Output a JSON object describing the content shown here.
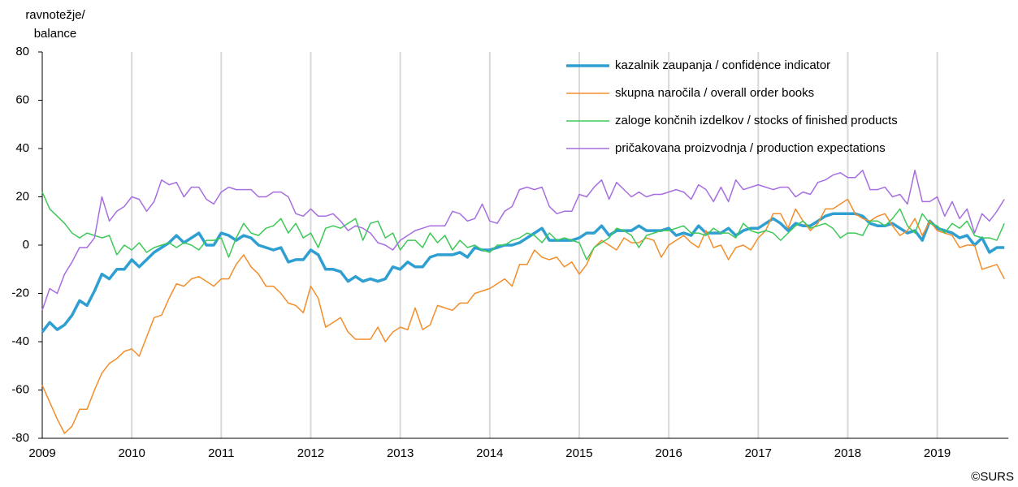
{
  "chart_data": {
    "type": "line",
    "ylabel": [
      "ravnotežje/",
      "balance"
    ],
    "source": "©SURS",
    "categories": [
      "2009",
      null,
      null,
      null,
      null,
      null,
      null,
      null,
      null,
      null,
      null,
      null,
      "2010",
      null,
      null,
      null,
      null,
      null,
      null,
      null,
      null,
      null,
      null,
      null,
      "2011",
      null,
      null,
      null,
      null,
      null,
      null,
      null,
      null,
      null,
      null,
      null,
      "2012",
      null,
      null,
      null,
      null,
      null,
      null,
      null,
      null,
      null,
      null,
      null,
      "2013",
      null,
      null,
      null,
      null,
      null,
      null,
      null,
      null,
      null,
      null,
      null,
      "2014",
      null,
      null,
      null,
      null,
      null,
      null,
      null,
      null,
      null,
      null,
      null,
      "2015",
      null,
      null,
      null,
      null,
      null,
      null,
      null,
      null,
      null,
      null,
      null,
      "2016",
      null,
      null,
      null,
      null,
      null,
      null,
      null,
      null,
      null,
      null,
      null,
      "2017",
      null,
      null,
      null,
      null,
      null,
      null,
      null,
      null,
      null,
      null,
      null,
      "2018",
      null,
      null,
      null,
      null,
      null,
      null,
      null,
      null,
      null,
      null,
      null,
      "2019",
      null,
      null,
      null,
      null,
      null,
      null,
      null,
      null,
      null
    ],
    "ylim": [
      -80,
      80
    ],
    "yticks": [
      -80,
      -60,
      -40,
      -20,
      0,
      20,
      40,
      60,
      80
    ],
    "grid": "x",
    "legend": "top-right",
    "series": [
      {
        "name": "kazalnik zaupanja / confidence indicator",
        "color": "#2f9fd2",
        "width": 3.5,
        "values": [
          -36,
          -32,
          -35,
          -33,
          -29,
          -23,
          -25,
          -19,
          -12,
          -14,
          -10,
          -10,
          -6,
          -9,
          -6,
          -3,
          -1,
          1,
          4,
          1,
          3,
          5,
          0,
          0,
          5,
          4,
          2,
          4,
          3,
          0,
          -1,
          -2,
          -1,
          -7,
          -6,
          -6,
          -2,
          -4,
          -10,
          -10,
          -11,
          -15,
          -13,
          -15,
          -14,
          -15,
          -14,
          -9,
          -10,
          -7,
          -9,
          -9,
          -5,
          -4,
          -4,
          -4,
          -3,
          -5,
          -1,
          -2,
          -2,
          -1,
          0,
          0,
          1,
          3,
          5,
          7,
          2,
          2,
          2,
          2,
          3,
          5,
          5,
          8,
          4,
          6,
          6,
          6,
          8,
          6,
          6,
          6,
          7,
          4,
          5,
          4,
          8,
          5,
          5,
          5,
          7,
          4,
          6,
          7,
          7,
          9,
          11,
          9,
          6,
          9,
          8,
          8,
          10,
          12,
          13,
          13,
          13,
          13,
          12,
          9,
          8,
          8,
          9,
          7,
          5,
          6,
          2,
          10,
          7,
          6,
          5,
          3,
          4,
          0,
          3,
          -3,
          -1,
          -1
        ]
      },
      {
        "name": "skupna naročila / overall order books",
        "color": "#f28e2b",
        "width": 1.5,
        "values": [
          -58,
          -65,
          -72,
          -78,
          -75,
          -68,
          -68,
          -60,
          -53,
          -49,
          -47,
          -44,
          -43,
          -46,
          -38,
          -30,
          -29,
          -22,
          -16,
          -17,
          -14,
          -13,
          -15,
          -17,
          -14,
          -14,
          -8,
          -4,
          -9,
          -12,
          -17,
          -17,
          -20,
          -24,
          -25,
          -28,
          -17,
          -22,
          -34,
          -32,
          -30,
          -36,
          -39,
          -39,
          -39,
          -34,
          -40,
          -36,
          -34,
          -35,
          -26,
          -35,
          -33,
          -25,
          -26,
          -27,
          -24,
          -24,
          -20,
          -19,
          -18,
          -16,
          -14,
          -17,
          -8,
          -8,
          -2,
          -5,
          -6,
          -5,
          -9,
          -7,
          -12,
          -8,
          -1,
          2,
          0,
          -2,
          3,
          1,
          1,
          3,
          2,
          -5,
          0,
          2,
          4,
          1,
          -1,
          6,
          -1,
          0,
          -6,
          -1,
          0,
          -2,
          3,
          6,
          13,
          13,
          7,
          15,
          10,
          6,
          9,
          15,
          15,
          17,
          19,
          13,
          11,
          10,
          12,
          13,
          8,
          4,
          6,
          11,
          4,
          10,
          6,
          5,
          4,
          -1,
          0,
          0,
          -10,
          -9,
          -8,
          -14
        ]
      },
      {
        "name": "zaloge končnih izdelkov / stocks of finished products",
        "color": "#3dc958",
        "width": 1.5,
        "values": [
          22,
          15,
          12,
          9,
          5,
          3,
          5,
          4,
          3,
          4,
          -4,
          0,
          -2,
          1,
          -3,
          -1,
          0,
          1,
          -1,
          1,
          0,
          -2,
          2,
          2,
          3,
          -5,
          3,
          9,
          5,
          4,
          7,
          8,
          11,
          5,
          9,
          3,
          5,
          -1,
          7,
          8,
          7,
          9,
          11,
          2,
          9,
          10,
          3,
          5,
          -2,
          2,
          2,
          -1,
          5,
          1,
          4,
          -2,
          2,
          -1,
          0,
          -2,
          -3,
          0,
          0,
          2,
          3,
          5,
          4,
          1,
          5,
          2,
          3,
          2,
          1,
          -6,
          -1,
          1,
          3,
          7,
          6,
          4,
          -1,
          4,
          5,
          6,
          6,
          7,
          8,
          5,
          5,
          4,
          7,
          5,
          5,
          3,
          9,
          6,
          5,
          6,
          5,
          2,
          5,
          8,
          10,
          7,
          8,
          9,
          7,
          3,
          5,
          5,
          4,
          10,
          10,
          8,
          11,
          15,
          8,
          5,
          13,
          9,
          8,
          5,
          9,
          7,
          10,
          4,
          3,
          3,
          2,
          9
        ]
      },
      {
        "name": "pričakovana proizvodnja / production expectations",
        "color": "#a66ee0",
        "width": 1.5,
        "values": [
          -27,
          -18,
          -20,
          -12,
          -7,
          -1,
          -1,
          3,
          20,
          10,
          14,
          16,
          20,
          19,
          14,
          18,
          27,
          25,
          26,
          20,
          24,
          24,
          19,
          17,
          22,
          24,
          23,
          23,
          23,
          20,
          20,
          22,
          22,
          20,
          13,
          12,
          15,
          12,
          12,
          13,
          10,
          6,
          8,
          7,
          5,
          1,
          0,
          -2,
          2,
          4,
          6,
          7,
          8,
          8,
          8,
          14,
          13,
          10,
          11,
          17,
          10,
          9,
          14,
          16,
          23,
          24,
          23,
          24,
          16,
          13,
          14,
          14,
          21,
          20,
          24,
          27,
          19,
          26,
          23,
          20,
          22,
          20,
          21,
          21,
          22,
          23,
          22,
          19,
          25,
          23,
          18,
          24,
          18,
          27,
          23,
          24,
          25,
          24,
          23,
          24,
          24,
          20,
          22,
          21,
          26,
          27,
          29,
          30,
          28,
          28,
          31,
          23,
          23,
          24,
          20,
          21,
          17,
          31,
          18,
          18,
          20,
          12,
          18,
          11,
          15,
          5,
          13,
          10,
          14,
          19
        ]
      }
    ]
  }
}
